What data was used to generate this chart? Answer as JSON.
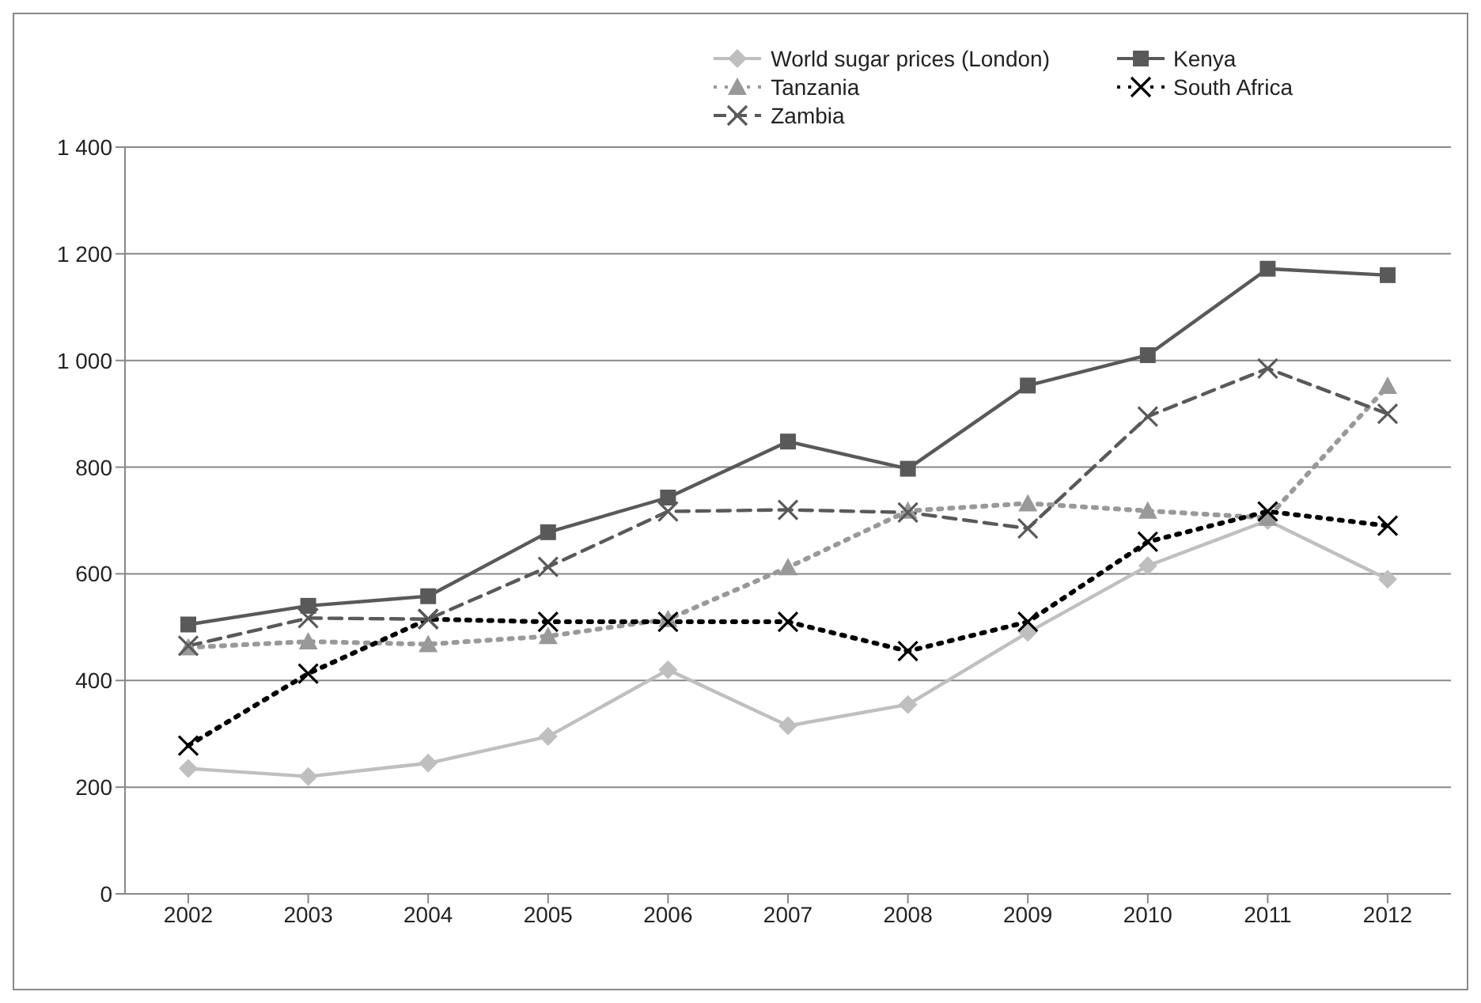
{
  "chart_data": {
    "type": "line",
    "categories": [
      "2002",
      "2003",
      "2004",
      "2005",
      "2006",
      "2007",
      "2008",
      "2009",
      "2010",
      "2011",
      "2012"
    ],
    "series": [
      {
        "name": "World sugar prices (London)",
        "color": "#bfbfbf",
        "marker": "diamond",
        "line_style": "solid",
        "values": [
          235,
          220,
          245,
          295,
          420,
          315,
          355,
          490,
          615,
          700,
          590
        ]
      },
      {
        "name": "Kenya",
        "color": "#595959",
        "marker": "square",
        "line_style": "solid",
        "values": [
          505,
          540,
          558,
          678,
          743,
          848,
          797,
          953,
          1010,
          1172,
          1160
        ]
      },
      {
        "name": "Tanzania",
        "color": "#999999",
        "marker": "triangle",
        "line_style": "dotted",
        "values": [
          462,
          473,
          468,
          483,
          515,
          612,
          718,
          732,
          718,
          705,
          952
        ]
      },
      {
        "name": "South Africa",
        "color": "#000000",
        "marker": "cross",
        "line_style": "dotted",
        "values": [
          278,
          413,
          515,
          510,
          510,
          510,
          455,
          510,
          660,
          717,
          690
        ]
      },
      {
        "name": "Zambia",
        "color": "#595959",
        "marker": "cross",
        "line_style": "dashed",
        "values": [
          465,
          517,
          515,
          613,
          717,
          720,
          715,
          685,
          895,
          985,
          900
        ]
      }
    ],
    "ylim": [
      0,
      1400
    ],
    "yticks": [
      0,
      200,
      400,
      600,
      800,
      {
        "value": 1000,
        "label": "1 000"
      },
      {
        "value": 1200,
        "label": "1 200"
      },
      {
        "value": 1400,
        "label": "1 400"
      }
    ],
    "grid": "y",
    "legend": "top right"
  }
}
